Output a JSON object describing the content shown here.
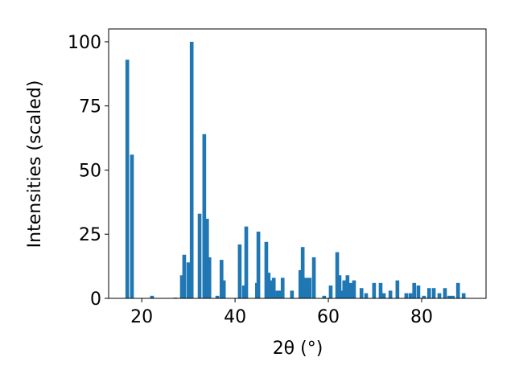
{
  "chart_data": {
    "type": "bar",
    "xlabel": "2θ (°)",
    "ylabel": "Intensities (scaled)",
    "color": "#1f77b4",
    "x": [
      16.9,
      17.9,
      22.2,
      27.2,
      28.6,
      29.1,
      30.0,
      30.7,
      32.4,
      33.4,
      34.0,
      34.5,
      36.2,
      37.1,
      37.6,
      41.0,
      41.9,
      42.4,
      44.7,
      45.0,
      46.7,
      47.2,
      47.8,
      48.3,
      49.1,
      49.5,
      50.2,
      52.2,
      54.0,
      54.5,
      54.8,
      55.3,
      56.0,
      56.9,
      59.1,
      60.5,
      61.9,
      62.4,
      62.9,
      63.4,
      64.1,
      64.8,
      65.5,
      67.1,
      68.1,
      69.8,
      71.2,
      71.9,
      73.3,
      74.8,
      76.7,
      77.6,
      78.4,
      79.3,
      80.5,
      81.6,
      82.6,
      83.8,
      85.0,
      85.9,
      86.7,
      87.8,
      89.0
    ],
    "values": [
      93,
      56,
      1,
      0.3,
      9,
      17,
      14,
      100,
      33,
      64,
      31,
      16,
      1,
      15,
      7,
      21,
      5,
      28,
      6,
      26,
      22,
      10,
      7,
      8,
      3,
      3,
      8,
      3,
      11,
      20,
      5,
      8,
      8,
      16,
      1,
      5,
      18,
      9,
      3,
      7,
      9,
      6,
      7,
      4,
      2,
      6,
      6,
      2,
      3,
      7,
      2,
      2,
      6,
      5,
      1,
      4,
      4,
      2,
      4,
      1,
      1,
      6,
      2
    ],
    "xlim": [
      12.9,
      93.8
    ],
    "ylim": [
      0,
      105
    ],
    "xticks": [
      20,
      40,
      60,
      80
    ],
    "yticks": [
      0,
      25,
      50,
      75,
      100
    ]
  }
}
